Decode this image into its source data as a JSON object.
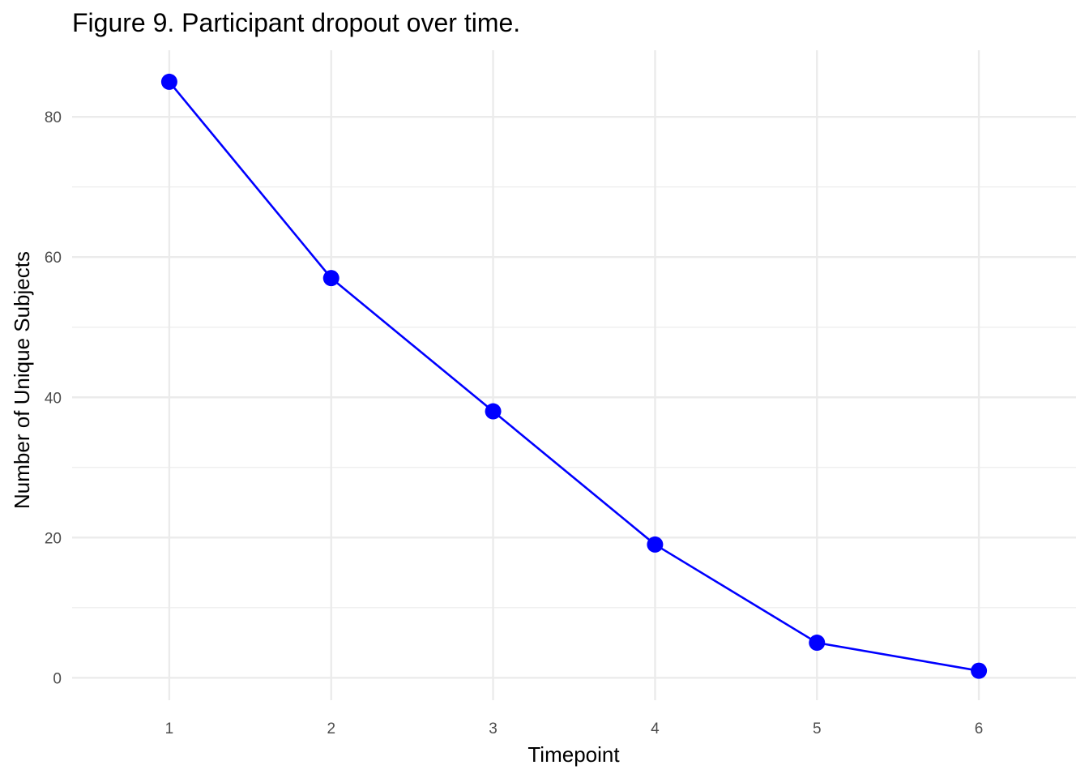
{
  "chart_data": {
    "type": "line",
    "title": "Figure 9. Participant dropout over time.",
    "xlabel": "Timepoint",
    "ylabel": "Number of Unique Subjects",
    "x": [
      1,
      2,
      3,
      4,
      5,
      6
    ],
    "series": [
      {
        "values": [
          85,
          57,
          38,
          19,
          5,
          1
        ],
        "color": "#0000ff"
      }
    ],
    "xlim": [
      0.4,
      6.6
    ],
    "ylim": [
      -3.2,
      89.5
    ],
    "xticks": [
      "1",
      "2",
      "3",
      "4",
      "5",
      "6"
    ],
    "yticks": [
      "0",
      "20",
      "40",
      "60",
      "80"
    ],
    "grid": true,
    "legend": "none",
    "background": "#ffffff"
  }
}
